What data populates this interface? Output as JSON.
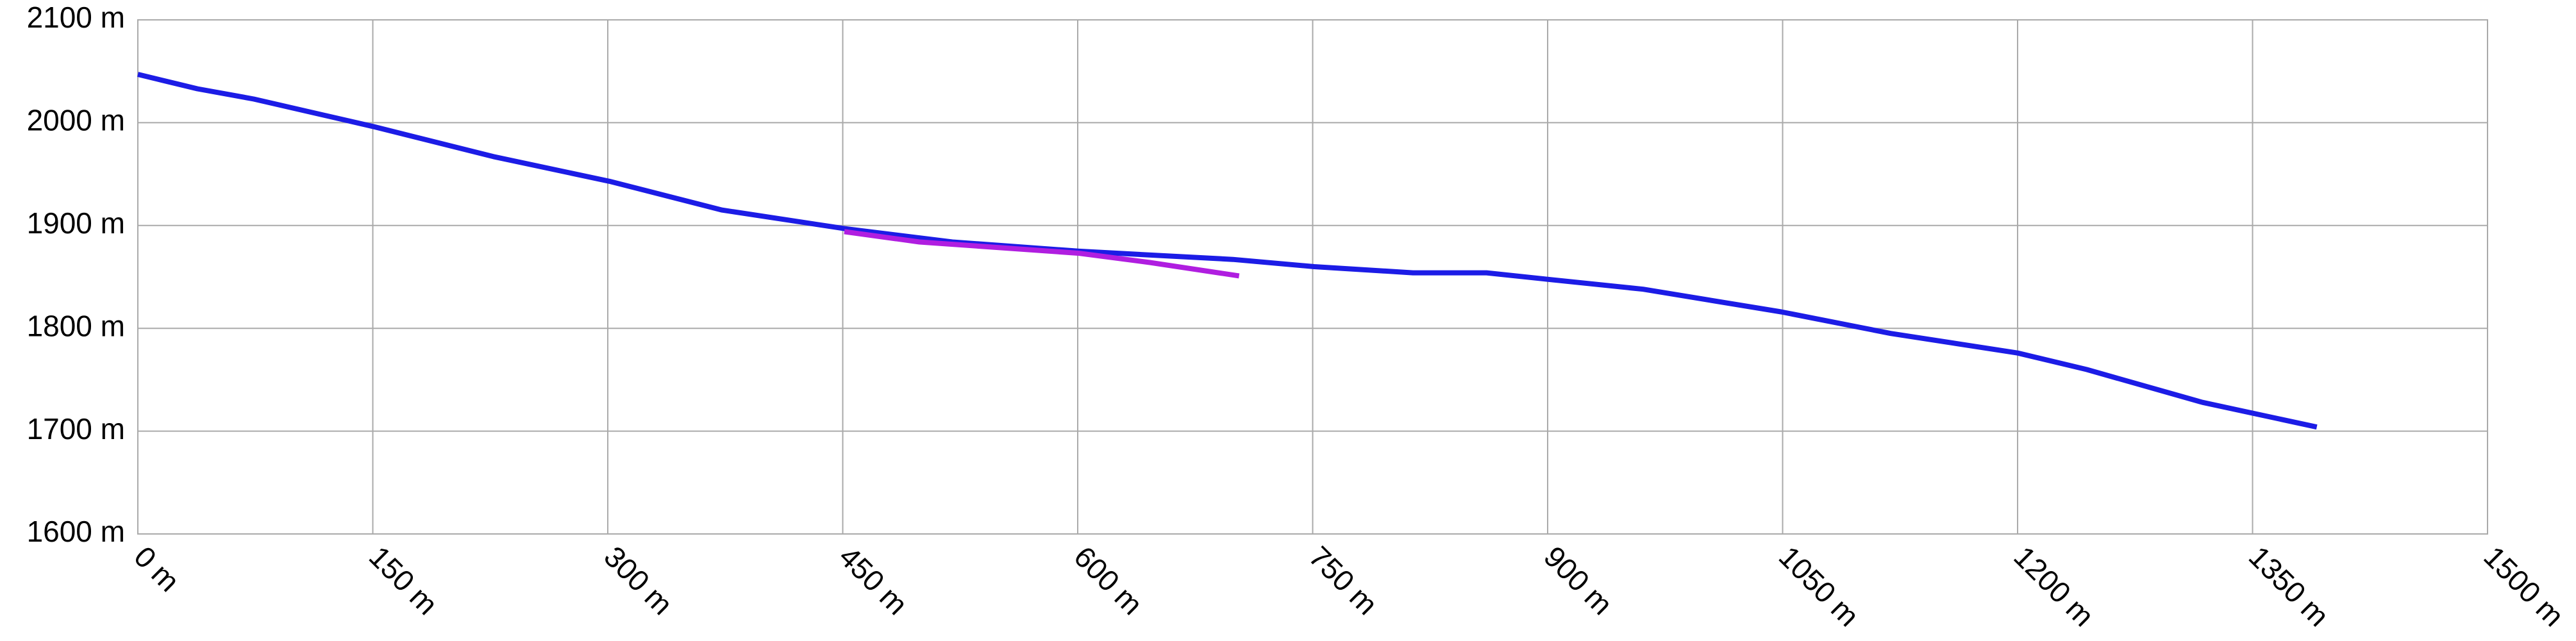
{
  "chart_data": {
    "type": "line",
    "xlim": [
      0,
      1500
    ],
    "xticks": [
      {
        "value": 0,
        "label": "0 m"
      },
      {
        "value": 150,
        "label": "150 m"
      },
      {
        "value": 300,
        "label": "300 m"
      },
      {
        "value": 450,
        "label": "450 m"
      },
      {
        "value": 600,
        "label": "600 m"
      },
      {
        "value": 750,
        "label": "750 m"
      },
      {
        "value": 900,
        "label": "900 m"
      },
      {
        "value": 1050,
        "label": "1050 m"
      },
      {
        "value": 1200,
        "label": "1200 m"
      },
      {
        "value": 1350,
        "label": "1350 m"
      },
      {
        "value": 1500,
        "label": "1500 m"
      }
    ],
    "ylim": [
      1600,
      2100
    ],
    "yticks": [
      {
        "value": 1600,
        "label": "1600 m"
      },
      {
        "value": 1700,
        "label": "1700 m"
      },
      {
        "value": 1800,
        "label": "1800 m"
      },
      {
        "value": 1900,
        "label": "1900 m"
      },
      {
        "value": 2000,
        "label": "2000 m"
      },
      {
        "value": 2100,
        "label": "2100 m"
      }
    ],
    "grid": true,
    "series": [
      {
        "color": "#1c1ce6",
        "x": [
          0,
          38,
          74,
          151,
          227,
          301,
          373,
          451,
          520,
          601,
          699,
          751,
          814,
          861,
          898,
          961,
          1049,
          1119,
          1200,
          1244,
          1318,
          1391
        ],
        "values": [
          2047,
          2033,
          2023,
          1996,
          1967,
          1943,
          1915,
          1897,
          1884,
          1875,
          1867,
          1860,
          1854,
          1854,
          1848,
          1838,
          1816,
          1795,
          1776,
          1760,
          1728,
          1704
        ]
      },
      {
        "color": "#b01ee0",
        "x": [
          451,
          499,
          601,
          646,
          703
        ],
        "values": [
          1894,
          1884,
          1873,
          1864,
          1851
        ]
      }
    ]
  }
}
